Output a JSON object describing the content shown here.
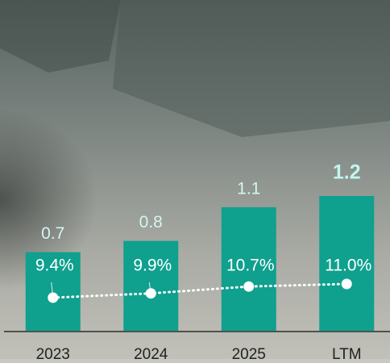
{
  "chart_data": {
    "type": "bar",
    "categories": [
      "2023",
      "2024",
      "2025",
      "LTM"
    ],
    "series": [
      {
        "type": "bar",
        "color": "#0fa08e",
        "values": [
          0.7,
          0.8,
          1.1,
          1.2
        ]
      },
      {
        "type": "line",
        "color": "#ffffff",
        "values": [
          9.4,
          9.9,
          10.7,
          11.0
        ],
        "value_labels": [
          "9.4%",
          "9.9%",
          "10.7%",
          "11.0%"
        ]
      }
    ]
  }
}
